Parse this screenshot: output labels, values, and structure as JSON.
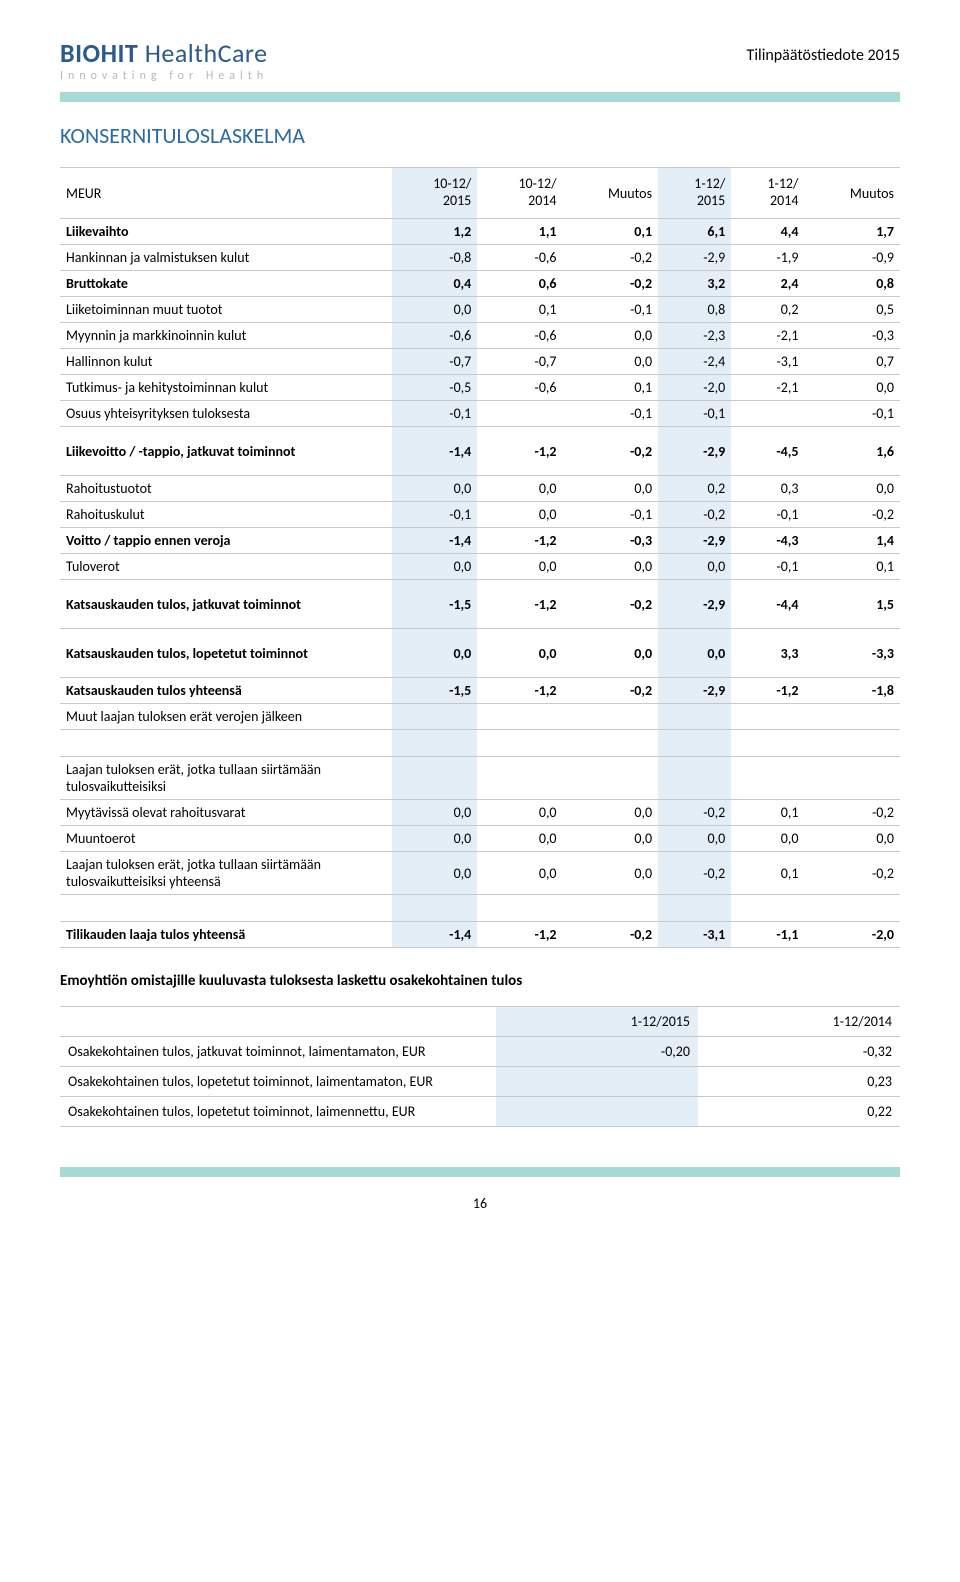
{
  "header": {
    "logo_main": "BIOHIT",
    "logo_sub": "HealthCare",
    "tagline": "Innovating for Health",
    "top_right": "Tilinpäätöstiedote 2015",
    "section_title": "KONSERNITULOSLASKELMA",
    "page_number": "16"
  },
  "colors": {
    "shade_bg": "#e3eef7",
    "border": "#c8c8c8",
    "accent_teal": "#a6d9d4",
    "title_blue": "#2b6ca3",
    "logo_blue": "#2b5a8b"
  },
  "table1": {
    "head": {
      "c0": "MEUR",
      "c1a": "10-12/",
      "c1b": "2015",
      "c2a": "10-12/",
      "c2b": "2014",
      "c3": "Muutos",
      "c4a": "1-12/",
      "c4b": "2015",
      "c5a": "1-12/",
      "c5b": "2014",
      "c6": "Muutos"
    },
    "rows": [
      {
        "label": "Liikevaihto",
        "bold": true,
        "v": [
          "1,2",
          "1,1",
          "0,1",
          "6,1",
          "4,4",
          "1,7"
        ]
      },
      {
        "label": "Hankinnan ja valmistuksen kulut",
        "v": [
          "-0,8",
          "-0,6",
          "-0,2",
          "-2,9",
          "-1,9",
          "-0,9"
        ]
      },
      {
        "label": "Bruttokate",
        "bold": true,
        "v": [
          "0,4",
          "0,6",
          "-0,2",
          "3,2",
          "2,4",
          "0,8"
        ]
      },
      {
        "label": "Liiketoiminnan muut tuotot",
        "v": [
          "0,0",
          "0,1",
          "-0,1",
          "0,8",
          "0,2",
          "0,5"
        ]
      },
      {
        "label": "Myynnin ja markkinoinnin kulut",
        "v": [
          "-0,6",
          "-0,6",
          "0,0",
          "-2,3",
          "-2,1",
          "-0,3"
        ]
      },
      {
        "label": "Hallinnon kulut",
        "v": [
          "-0,7",
          "-0,7",
          "0,0",
          "-2,4",
          "-3,1",
          "0,7"
        ]
      },
      {
        "label": "Tutkimus- ja kehitystoiminnan kulut",
        "v": [
          "-0,5",
          "-0,6",
          "0,1",
          "-2,0",
          "-2,1",
          "0,0"
        ]
      },
      {
        "label": "Osuus yhteisyrityksen tuloksesta",
        "v": [
          "-0,1",
          "",
          "-0,1",
          "-0,1",
          "",
          "-0,1"
        ]
      },
      {
        "label": "Liikevoitto / -tappio, jatkuvat toiminnot",
        "bold": true,
        "tall": true,
        "v": [
          "-1,4",
          "-1,2",
          "-0,2",
          "-2,9",
          "-4,5",
          "1,6"
        ]
      },
      {
        "label": "Rahoitustuotot",
        "v": [
          "0,0",
          "0,0",
          "0,0",
          "0,2",
          "0,3",
          "0,0"
        ]
      },
      {
        "label": "Rahoituskulut",
        "v": [
          "-0,1",
          "0,0",
          "-0,1",
          "-0,2",
          "-0,1",
          "-0,2"
        ]
      },
      {
        "label": "Voitto / tappio ennen veroja",
        "bold": true,
        "v": [
          "-1,4",
          "-1,2",
          "-0,3",
          "-2,9",
          "-4,3",
          "1,4"
        ]
      },
      {
        "label": "Tuloverot",
        "v": [
          "0,0",
          "0,0",
          "0,0",
          "0,0",
          "-0,1",
          "0,1"
        ]
      },
      {
        "label": "Katsauskauden tulos, jatkuvat toiminnot",
        "bold": true,
        "tall": true,
        "v": [
          "-1,5",
          "-1,2",
          "-0,2",
          "-2,9",
          "-4,4",
          "1,5"
        ]
      },
      {
        "label": "Katsauskauden tulos, lopetetut toiminnot",
        "bold": true,
        "tall": true,
        "v": [
          "0,0",
          "0,0",
          "0,0",
          "0,0",
          "3,3",
          "-3,3"
        ]
      },
      {
        "label": "Katsauskauden tulos yhteensä",
        "bold": true,
        "v": [
          "-1,5",
          "-1,2",
          "-0,2",
          "-2,9",
          "-1,2",
          "-1,8"
        ]
      },
      {
        "label": "Muut laajan tuloksen erät verojen jälkeen",
        "v": [
          "",
          "",
          "",
          "",
          "",
          ""
        ]
      },
      {
        "spacer": true
      },
      {
        "label": "Laajan tuloksen erät, jotka tullaan siirtämään tulosvaikutteisiksi",
        "v": [
          "",
          "",
          "",
          "",
          "",
          ""
        ]
      },
      {
        "label": "Myytävissä olevat rahoitusvarat",
        "v": [
          "0,0",
          "0,0",
          "0,0",
          "-0,2",
          "0,1",
          "-0,2"
        ]
      },
      {
        "label": "Muuntoerot",
        "v": [
          "0,0",
          "0,0",
          "0,0",
          "0,0",
          "0,0",
          "0,0"
        ]
      },
      {
        "label": "Laajan tuloksen erät, jotka tullaan siirtämään tulosvaikutteisiksi yhteensä",
        "v": [
          "0,0",
          "0,0",
          "0,0",
          "-0,2",
          "0,1",
          "-0,2"
        ]
      },
      {
        "spacer": true
      },
      {
        "label": "Tilikauden laaja tulos yhteensä",
        "bold": true,
        "v": [
          "-1,4",
          "-1,2",
          "-0,2",
          "-3,1",
          "-1,1",
          "-2,0"
        ]
      }
    ]
  },
  "subheading": "Emoyhtiön omistajille kuuluvasta tuloksesta laskettu osakekohtainen tulos",
  "table2": {
    "head": {
      "c0": "",
      "c1": "1-12/2015",
      "c2": "1-12/2014"
    },
    "rows": [
      {
        "label": "Osakekohtainen tulos, jatkuvat toiminnot, laimentamaton, EUR",
        "v": [
          "-0,20",
          "-0,32"
        ]
      },
      {
        "label": "Osakekohtainen tulos, lopetetut toiminnot, laimentamaton, EUR",
        "v": [
          "",
          "0,23"
        ]
      },
      {
        "label": "Osakekohtainen tulos, lopetetut toiminnot, laimennettu, EUR",
        "v": [
          "",
          "0,22"
        ]
      }
    ]
  }
}
